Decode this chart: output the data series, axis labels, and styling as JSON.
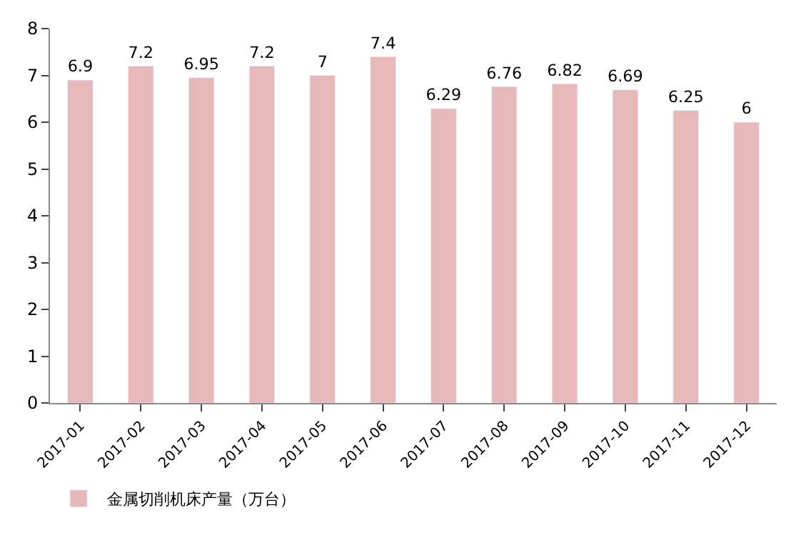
{
  "chart_data": {
    "type": "bar",
    "categories": [
      "2017-01",
      "2017-02",
      "2017-03",
      "2017-04",
      "2017-05",
      "2017-06",
      "2017-07",
      "2017-08",
      "2017-09",
      "2017-10",
      "2017-11",
      "2017-12"
    ],
    "series": [
      {
        "name": "金属切削机床产量（万台）",
        "color": "#e6b9b8",
        "values": [
          6.9,
          7.2,
          6.95,
          7.2,
          7,
          7.4,
          6.29,
          6.76,
          6.82,
          6.69,
          6.25,
          6
        ]
      }
    ],
    "value_labels": [
      "6.9",
      "7.2",
      "6.95",
      "7.2",
      "7",
      "7.4",
      "6.29",
      "6.76",
      "6.82",
      "6.69",
      "6.25",
      "6"
    ],
    "ylim": [
      0,
      8
    ],
    "yticks": [
      0,
      1,
      2,
      3,
      4,
      5,
      6,
      7,
      8
    ],
    "legend": "bottom left"
  }
}
